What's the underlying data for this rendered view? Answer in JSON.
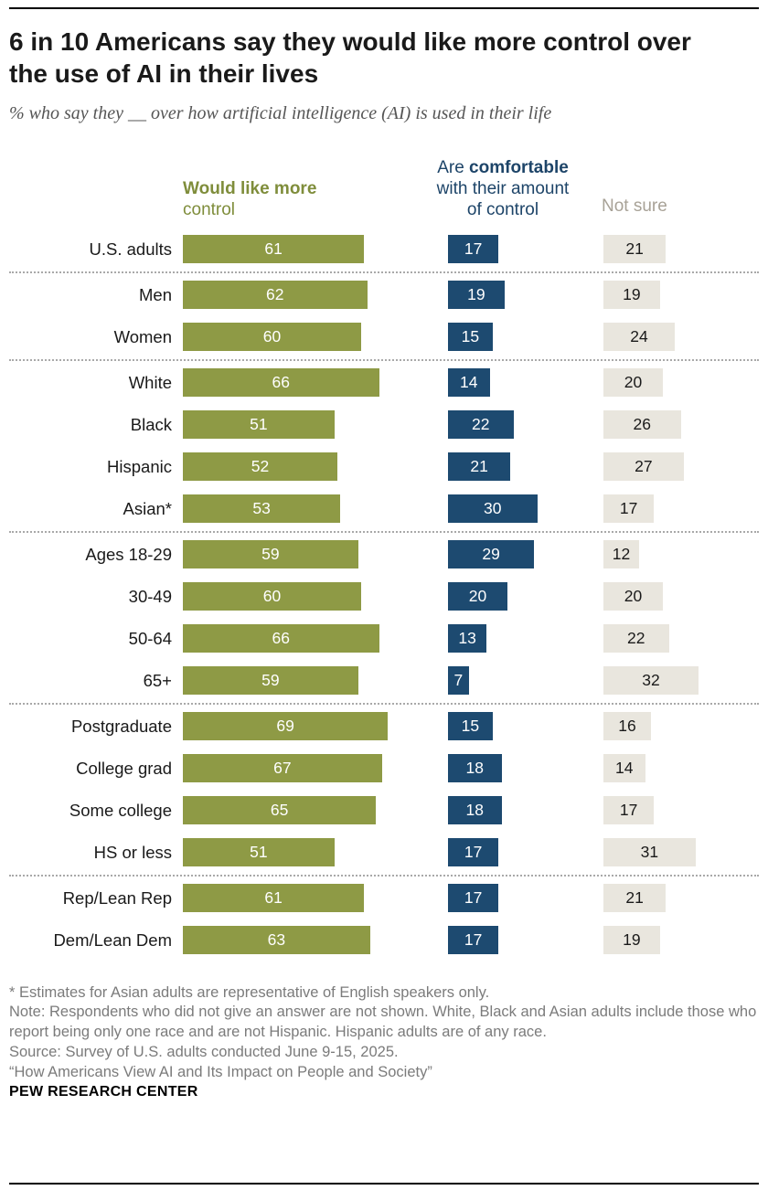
{
  "header": {
    "title": "6 in 10 Americans say they would like more control over the use of AI in their lives",
    "subtitle": "% who say they __ over how artificial intelligence (AI) is used in their life"
  },
  "columns": {
    "col1": {
      "line1": "Would like more",
      "line2": "control"
    },
    "col2": {
      "line1_prefix": "Are ",
      "line1_bold": "comfortable",
      "line2": "with their amount",
      "line3": "of control"
    },
    "col3": {
      "label": "Not sure"
    }
  },
  "colors": {
    "olive": "#8e9a45",
    "navy": "#1d4a70",
    "light_gray": "#e9e6de"
  },
  "chart_data": {
    "type": "bar",
    "orientation": "horizontal",
    "title": "6 in 10 Americans say they would like more control over the use of AI in their lives",
    "subtitle": "% who say they __ over how artificial intelligence (AI) is used in their life",
    "xlim": [
      0,
      100
    ],
    "unit": "percent",
    "categories": [
      "U.S. adults",
      "Men",
      "Women",
      "White",
      "Black",
      "Hispanic",
      "Asian*",
      "Ages 18-29",
      "30-49",
      "50-64",
      "65+",
      "Postgraduate",
      "College grad",
      "Some college",
      "HS or less",
      "Rep/Lean Rep",
      "Dem/Lean Dem"
    ],
    "series": [
      {
        "name": "Would like more control",
        "color": "#8e9a45",
        "label_color": "#ffffff",
        "values": [
          61,
          62,
          60,
          66,
          51,
          52,
          53,
          59,
          60,
          66,
          59,
          69,
          67,
          65,
          51,
          61,
          63
        ]
      },
      {
        "name": "Are comfortable with their amount of control",
        "color": "#1d4a70",
        "label_color": "#ffffff",
        "values": [
          17,
          19,
          15,
          14,
          22,
          21,
          30,
          29,
          20,
          13,
          7,
          15,
          18,
          18,
          17,
          17,
          17
        ]
      },
      {
        "name": "Not sure",
        "color": "#e9e6de",
        "label_color": "#1a1a1a",
        "values": [
          21,
          19,
          24,
          20,
          26,
          27,
          17,
          12,
          20,
          22,
          32,
          16,
          14,
          17,
          31,
          21,
          19
        ]
      }
    ],
    "group_separators_after": [
      0,
      2,
      6,
      10,
      14
    ],
    "legend_position": "top"
  },
  "footer": {
    "asterisk_note": "* Estimates for Asian adults are representative of English speakers only.",
    "note": "Note: Respondents who did not give an answer are not shown. White, Black and Asian adults include those who report being only one race and are not Hispanic. Hispanic adults are of any race.",
    "source": "Source: Survey of U.S. adults conducted June 9-15, 2025.",
    "report": "“How Americans View AI and Its Impact on People and Society”",
    "brand": "PEW RESEARCH CENTER"
  }
}
